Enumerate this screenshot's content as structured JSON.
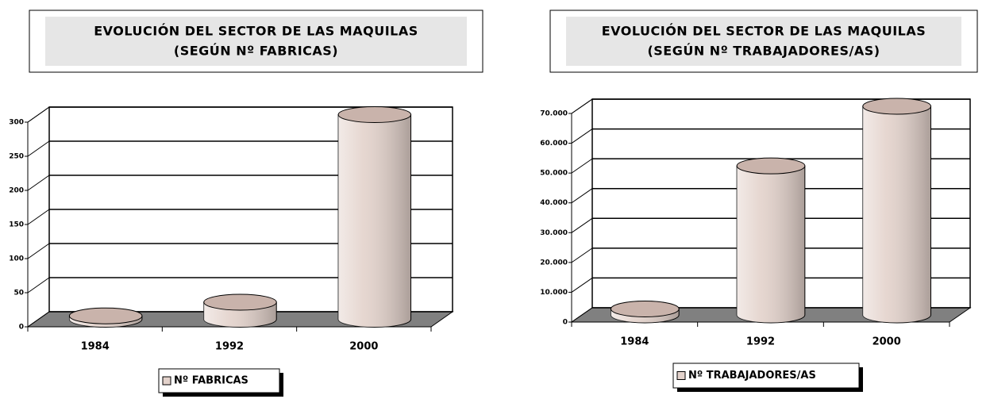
{
  "chart_data": [
    {
      "type": "bar3d",
      "title": "EVOLUCIÓN DEL SECTOR DE LAS MAQUILAS",
      "subtitle": "(SEGÚN Nº FABRICAS)",
      "categories": [
        "1984",
        "1992",
        "2000"
      ],
      "series": [
        {
          "name": "Nº FABRICAS",
          "color": "#e3d2cb",
          "values": [
            5,
            25,
            300
          ]
        }
      ],
      "ylim": [
        0,
        300
      ],
      "yticks": [
        0,
        50,
        100,
        150,
        200,
        250,
        300
      ],
      "grid": true,
      "legend": "bottom"
    },
    {
      "type": "bar3d",
      "title": "EVOLUCIÓN DEL SECTOR DE LAS MAQUILAS",
      "subtitle": "(SEGÚN Nº TRABAJADORES/AS)",
      "categories": [
        "1984",
        "1992",
        "2000"
      ],
      "series": [
        {
          "name": "Nº TRABAJADORES/AS",
          "color": "#e3d2cb",
          "values": [
            2000,
            50000,
            70000
          ]
        }
      ],
      "ylim": [
        0,
        70000
      ],
      "yticks": [
        0,
        {
          "value": 10000,
          "label": "10.000"
        },
        {
          "value": 20000,
          "label": "20.000"
        },
        {
          "value": 30000,
          "label": "30.000"
        },
        {
          "value": 40000,
          "label": "40.000"
        },
        {
          "value": 50000,
          "label": "50.000"
        },
        {
          "value": 60000,
          "label": "60.000"
        },
        {
          "value": 70000,
          "label": "70.000"
        }
      ],
      "grid": true,
      "legend": "bottom"
    }
  ]
}
